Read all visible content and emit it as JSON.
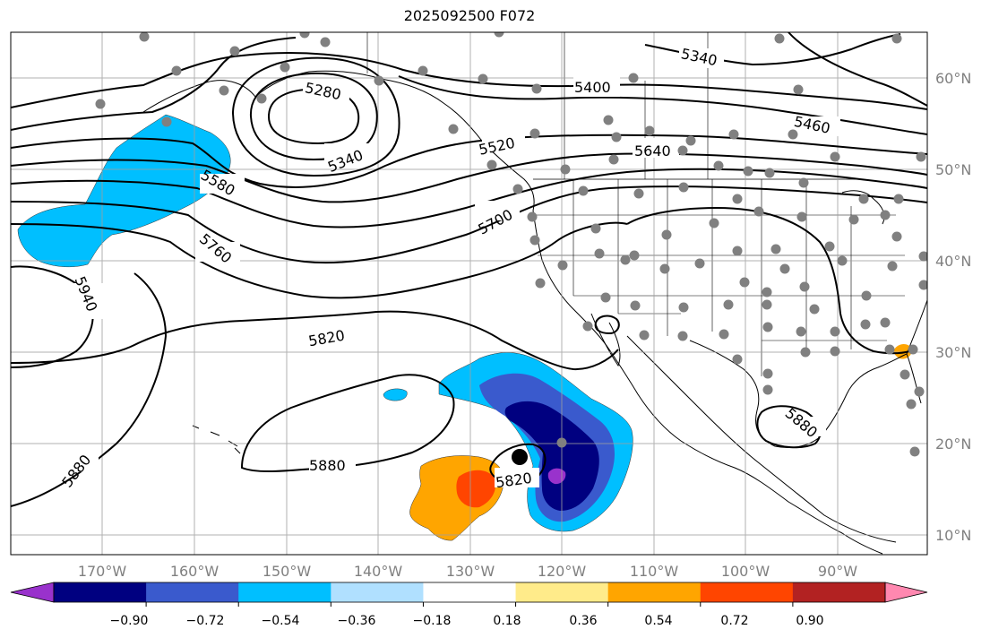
{
  "title": "2025092500 F072",
  "map": {
    "lat_ticks": [
      "60°N",
      "50°N",
      "40°N",
      "30°N",
      "20°N",
      "10°N"
    ],
    "lon_ticks": [
      "170°W",
      "160°W",
      "150°W",
      "140°W",
      "130°W",
      "120°W",
      "110°W",
      "100°W",
      "90°W"
    ],
    "contour_labels": [
      "5280",
      "5340",
      "5340",
      "5400",
      "5460",
      "5520",
      "5580",
      "5640",
      "5700",
      "5760",
      "5820",
      "5820",
      "5880",
      "5880",
      "5880",
      "5940"
    ],
    "station_color": "#808080",
    "cyclone_marker_color": "#000000"
  },
  "colorbar": {
    "tick_labels": [
      "−0.90",
      "−0.72",
      "−0.54",
      "−0.36",
      "−0.18",
      "0.18",
      "0.36",
      "0.54",
      "0.72",
      "0.90"
    ],
    "colors": [
      "#9932cc",
      "#000080",
      "#3a5acd",
      "#00bfff",
      "#b0e0ff",
      "#ffffff",
      "#ffeb8a",
      "#ffa500",
      "#ff4500",
      "#b22222",
      "#ff88b0"
    ]
  }
}
